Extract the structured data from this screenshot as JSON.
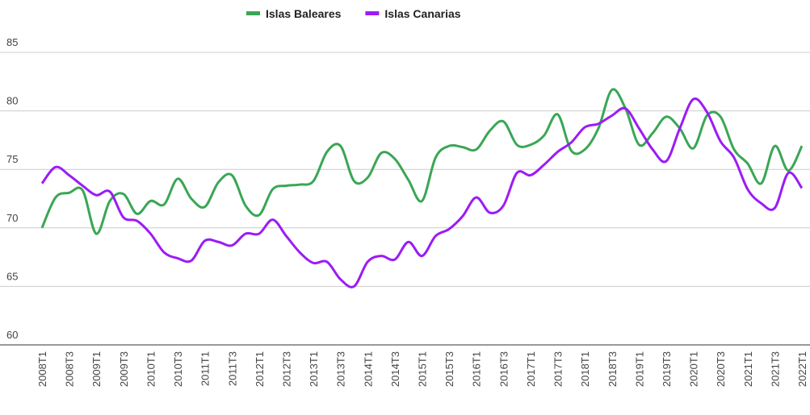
{
  "chart_data": {
    "type": "line",
    "categories": [
      "2008T1",
      null,
      "2008T3",
      null,
      "2009T1",
      null,
      "2009T3",
      null,
      "2010T1",
      null,
      "2010T3",
      null,
      "2011T1",
      null,
      "2011T3",
      null,
      "2012T1",
      null,
      "2012T3",
      null,
      "2013T1",
      null,
      "2013T3",
      null,
      "2014T1",
      null,
      "2014T3",
      null,
      "2015T1",
      null,
      "2015T3",
      null,
      "2016T1",
      null,
      "2016T3",
      null,
      "2017T1",
      null,
      "2017T3",
      null,
      "2018T1",
      null,
      "2018T3",
      null,
      "2019T1",
      null,
      "2019T3",
      null,
      "2020T1",
      null,
      "2020T3",
      null,
      "2021T1",
      null,
      "2021T3",
      null,
      "2022T1"
    ],
    "series": [
      {
        "name": "Islas Baleares",
        "color": "#3aa655",
        "values": [
          70.0,
          72.6,
          73.0,
          73.2,
          69.5,
          72.3,
          72.9,
          71.2,
          72.3,
          72.0,
          74.2,
          72.5,
          71.8,
          73.9,
          74.5,
          71.9,
          71.1,
          73.3,
          73.6,
          73.7,
          74.0,
          76.5,
          77.0,
          74.0,
          74.3,
          76.4,
          75.9,
          74.1,
          72.3,
          76.0,
          77.0,
          76.9,
          76.7,
          78.3,
          79.1,
          77.1,
          77.1,
          77.9,
          79.7,
          76.6,
          76.7,
          78.5,
          81.8,
          80.2,
          77.1,
          78.1,
          79.5,
          78.5,
          76.8,
          79.6,
          79.5,
          76.7,
          75.5,
          73.8,
          77.0,
          74.9,
          77.0
        ]
      },
      {
        "name": "Islas Canarias",
        "color": "#9b1cf5",
        "values": [
          73.8,
          75.2,
          74.5,
          73.6,
          72.8,
          73.1,
          70.9,
          70.6,
          69.5,
          67.9,
          67.4,
          67.2,
          68.9,
          68.8,
          68.5,
          69.5,
          69.5,
          70.7,
          69.3,
          67.9,
          67.0,
          67.1,
          65.6,
          65.0,
          67.1,
          67.6,
          67.3,
          68.8,
          67.6,
          69.3,
          69.9,
          71.0,
          72.6,
          71.3,
          71.9,
          74.7,
          74.5,
          75.4,
          76.5,
          77.3,
          78.6,
          78.9,
          79.6,
          80.2,
          78.5,
          76.7,
          75.7,
          78.5,
          81.0,
          79.9,
          77.4,
          76.0,
          73.3,
          72.1,
          71.7,
          74.7,
          73.4
        ]
      }
    ],
    "ylim": [
      60,
      85
    ],
    "yticks": [
      60,
      65,
      70,
      75,
      80,
      85
    ],
    "grid": true,
    "legend": "top"
  }
}
